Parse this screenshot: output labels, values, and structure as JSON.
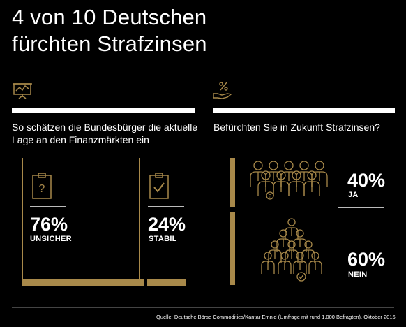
{
  "header": {
    "title_line1": "4 von 10 Deutschen",
    "title_line2": "fürchten Strafzinsen"
  },
  "colors": {
    "background": "#000000",
    "accent_gold": "#a8894a",
    "text": "#ffffff"
  },
  "left_panel": {
    "icon": "trend-chart-board-icon",
    "question_line1": "So schätzen die Bundesbürger die aktuelle",
    "question_line2": "Lage an den Finanzmärkten ein"
  },
  "right_panel": {
    "icon": "percent-hand-icon",
    "question": "Befürchten Sie in Zukunft Strafzinsen?"
  },
  "chart_data": [
    {
      "type": "bar",
      "title": "So schätzen die Bundesbürger die aktuelle Lage an den Finanzmärkten ein",
      "unit": "%",
      "categories": [
        "UNSICHER",
        "STABIL"
      ],
      "values": [
        76,
        24
      ],
      "value_labels": [
        "76%",
        "24%"
      ],
      "icons": [
        "clipboard-question-icon",
        "clipboard-check-icon"
      ]
    },
    {
      "type": "bar",
      "title": "Befürchten Sie in Zukunft Strafzinsen?",
      "unit": "%",
      "categories": [
        "JA",
        "NEIN"
      ],
      "values": [
        40,
        60
      ],
      "value_labels": [
        "40%",
        "60%"
      ],
      "icons": [
        "people-group-question-icon",
        "people-group-check-icon"
      ]
    }
  ],
  "footer": {
    "source": "Quelle: Deutsche Börse Commodities/Kantar Emnid (Umfrage mit rund 1.000 Befragten), Oktober 2016"
  }
}
